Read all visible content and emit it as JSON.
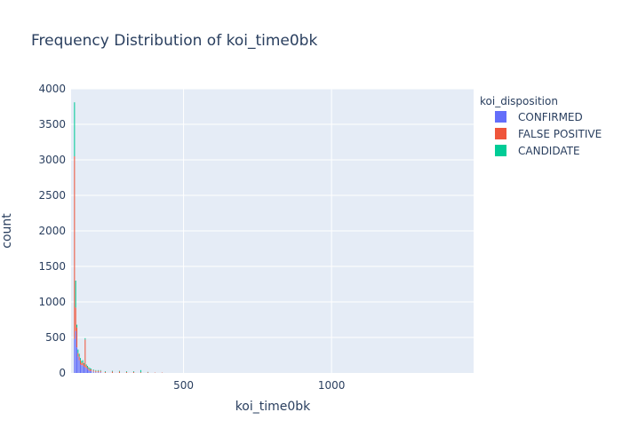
{
  "chart_data": {
    "type": "bar",
    "title": "Frequency Distribution of koi_time0bk",
    "xlabel": "koi_time0bk",
    "ylabel": "count",
    "xlim": [
      120,
      1480
    ],
    "ylim": [
      0,
      4000
    ],
    "x_ticks": [
      500,
      1000
    ],
    "y_ticks": [
      0,
      500,
      1000,
      1500,
      2000,
      2500,
      3000,
      3500,
      4000
    ],
    "barmode": "stack",
    "bin_width": 4,
    "grid": true,
    "legend_placement": "top-right",
    "legend_title": "koi_disposition",
    "series": [
      {
        "name": "CONFIRMED",
        "color": "#636efa",
        "x": [
          132,
          136,
          140,
          144,
          148,
          152,
          156,
          160,
          164,
          168,
          172,
          176,
          180,
          184,
          188,
          196,
          204,
          212,
          220
        ],
        "values": [
          480,
          590,
          360,
          230,
          180,
          120,
          110,
          110,
          90,
          80,
          70,
          60,
          40,
          30,
          30,
          20,
          10,
          10,
          10
        ]
      },
      {
        "name": "FALSE POSITIVE",
        "color": "#ef553b",
        "x": [
          132,
          136,
          140,
          144,
          148,
          152,
          156,
          160,
          164,
          168,
          172,
          176,
          180,
          184,
          188,
          196,
          204,
          212,
          220,
          236,
          260,
          284,
          308,
          332,
          356,
          380,
          404,
          428
        ],
        "values": [
          2570,
          330,
          280,
          50,
          50,
          60,
          30,
          40,
          30,
          390,
          30,
          20,
          20,
          20,
          20,
          20,
          20,
          20,
          20,
          15,
          20,
          20,
          15,
          15,
          10,
          10,
          5,
          5
        ]
      },
      {
        "name": "CANDIDATE",
        "color": "#00cc96",
        "x": [
          132,
          136,
          140,
          144,
          148,
          152,
          156,
          160,
          164,
          168,
          172,
          176,
          180,
          184,
          188,
          196,
          204,
          212,
          220,
          236,
          260,
          284,
          308,
          332,
          356,
          380
        ],
        "values": [
          760,
          380,
          40,
          50,
          40,
          30,
          30,
          30,
          20,
          20,
          20,
          20,
          20,
          20,
          10,
          10,
          10,
          10,
          10,
          10,
          10,
          10,
          10,
          10,
          30,
          5
        ]
      }
    ]
  }
}
